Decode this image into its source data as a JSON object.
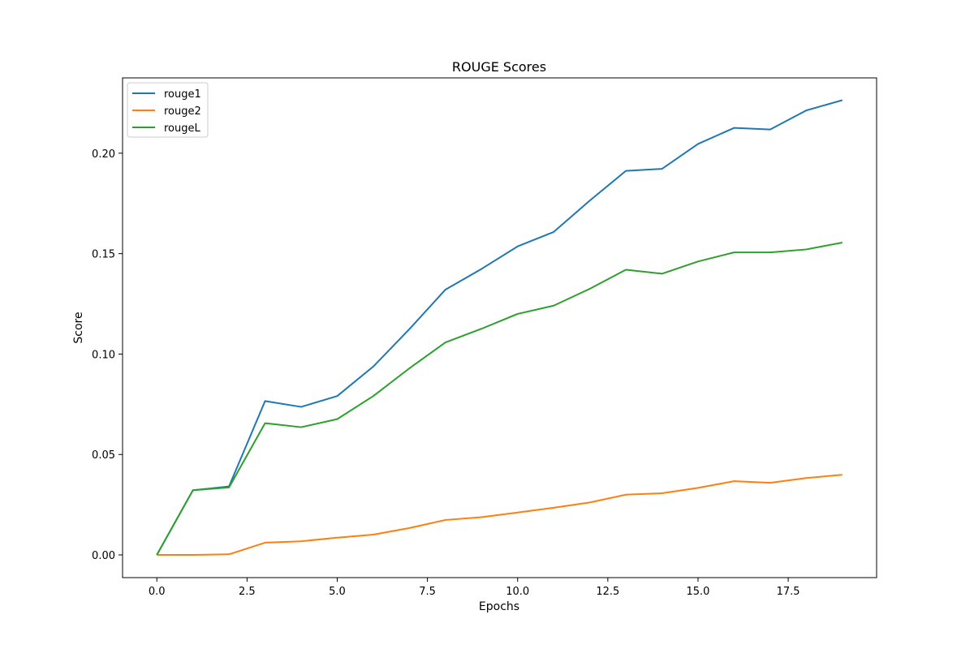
{
  "chart_data": {
    "type": "line",
    "title": "ROUGE Scores",
    "xlabel": "Epochs",
    "ylabel": "Score",
    "xlim": [
      -0.95,
      19.95
    ],
    "ylim": [
      -0.0113,
      0.2375
    ],
    "xticks": [
      0.0,
      2.5,
      5.0,
      7.5,
      10.0,
      12.5,
      15.0,
      17.5
    ],
    "xtick_labels": [
      "0.0",
      "2.5",
      "5.0",
      "7.5",
      "10.0",
      "12.5",
      "15.0",
      "17.5"
    ],
    "yticks": [
      0.0,
      0.05,
      0.1,
      0.15,
      0.2
    ],
    "ytick_labels": [
      "0.00",
      "0.05",
      "0.10",
      "0.15",
      "0.20"
    ],
    "grid": false,
    "legend_position": "top-left",
    "x": [
      0,
      1,
      2,
      3,
      4,
      5,
      6,
      7,
      8,
      9,
      10,
      11,
      12,
      13,
      14,
      15,
      16,
      17,
      18,
      19
    ],
    "series": [
      {
        "name": "rouge1",
        "color": "#1f77b4",
        "values": [
          0.0,
          0.0322,
          0.0341,
          0.0766,
          0.0737,
          0.0791,
          0.0938,
          0.1124,
          0.1321,
          0.1424,
          0.1536,
          0.1608,
          0.1764,
          0.1912,
          0.1922,
          0.2046,
          0.2126,
          0.2118,
          0.2213,
          0.2264
        ]
      },
      {
        "name": "rouge2",
        "color": "#ff7f0e",
        "values": [
          0.0,
          0.0,
          0.0003,
          0.0061,
          0.0068,
          0.0086,
          0.0101,
          0.0134,
          0.0174,
          0.0188,
          0.0211,
          0.0235,
          0.0261,
          0.03,
          0.0307,
          0.0334,
          0.0367,
          0.0359,
          0.0383,
          0.0399
        ]
      },
      {
        "name": "rougeL",
        "color": "#2ca02c",
        "values": [
          0.0,
          0.0322,
          0.0336,
          0.0656,
          0.0636,
          0.0676,
          0.0791,
          0.0929,
          0.1058,
          0.1126,
          0.12,
          0.1241,
          0.1325,
          0.142,
          0.14,
          0.1461,
          0.1506,
          0.1506,
          0.1521,
          0.1555
        ]
      }
    ]
  }
}
